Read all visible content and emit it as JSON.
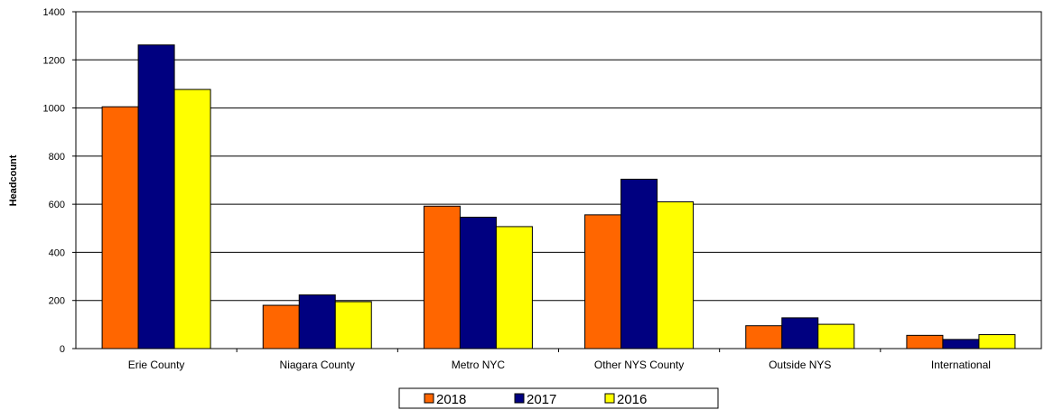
{
  "chart_data": {
    "type": "bar",
    "title": "",
    "xlabel": "",
    "ylabel": "Headcount",
    "ylim": [
      0,
      1400
    ],
    "yticks": [
      0,
      200,
      400,
      600,
      800,
      1000,
      1200,
      1400
    ],
    "grid": true,
    "legend_position": "bottom",
    "categories": [
      "Erie County",
      "Niagara County",
      "Metro NYC",
      "Other NYS County",
      "Outside NYS",
      "International"
    ],
    "series": [
      {
        "name": "2018",
        "color": "#FF6600",
        "values": [
          1005,
          180,
          592,
          556,
          95,
          55
        ]
      },
      {
        "name": "2017",
        "color": "#000080",
        "values": [
          1262,
          223,
          546,
          704,
          128,
          38
        ]
      },
      {
        "name": "2016",
        "color": "#FFFF00",
        "values": [
          1077,
          195,
          507,
          610,
          101,
          58
        ]
      }
    ]
  }
}
